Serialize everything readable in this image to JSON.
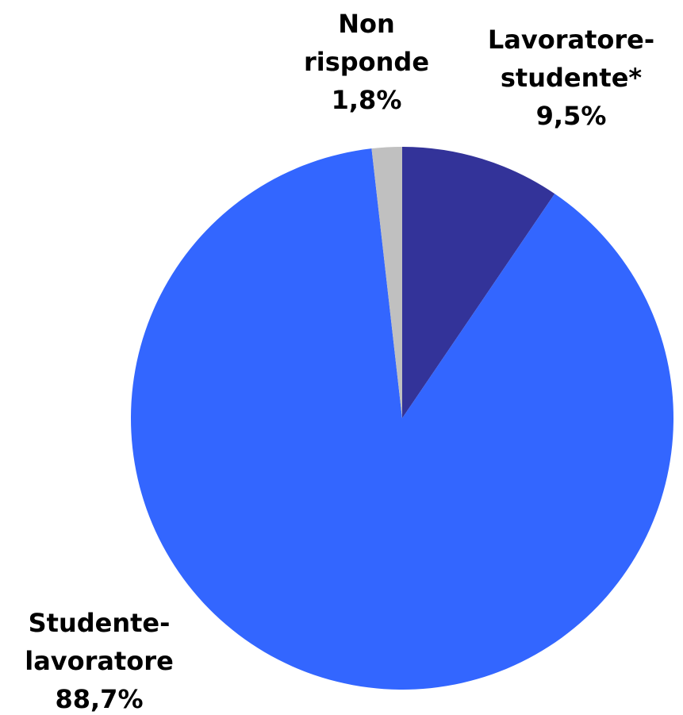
{
  "chart_data": {
    "type": "pie",
    "categories": [
      "Lavoratore-studente*",
      "Studente-lavoratore",
      "Non risponde"
    ],
    "values": [
      9.5,
      88.7,
      1.8
    ],
    "value_labels": [
      "9,5%",
      "88,7%",
      "1,8%"
    ],
    "colors": [
      "#333399",
      "#3366ff",
      "#c0c0c0"
    ]
  }
}
